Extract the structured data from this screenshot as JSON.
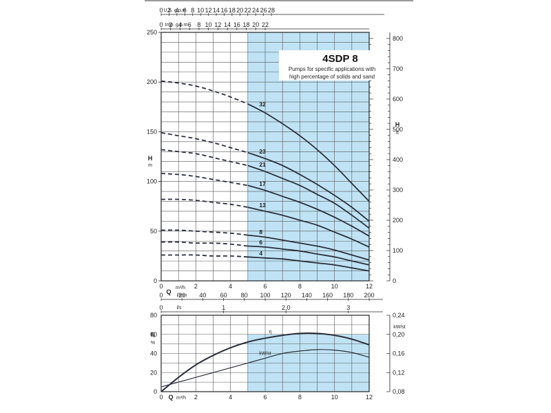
{
  "chart_data": [
    {
      "type": "line",
      "title": "4SDP 8",
      "subtitle_lines": [
        "Pumps for specific applications with",
        "high percentage of solids and sand"
      ],
      "ylabel_left": "H",
      "ylabel_left_unit": "m",
      "ylabel_right": "H",
      "ylabel_right_unit": "ft",
      "xlabel": "Q",
      "ylim": [
        0,
        250
      ],
      "xlim": [
        0,
        12
      ],
      "left_ticks": [
        "0",
        "50",
        "100",
        "150",
        "200",
        "250"
      ],
      "right_ticks": [
        "0",
        "100",
        "200",
        "300",
        "400",
        "500",
        "600",
        "700",
        "800"
      ],
      "x_axes": [
        {
          "unit": "U.S. g.p.m",
          "ticks": [
            "0",
            "2",
            "4",
            "6",
            "8",
            "10",
            "12",
            "14",
            "16",
            "18",
            "20",
            "22",
            "24",
            "26",
            "28"
          ]
        },
        {
          "unit": "Imp. g.p.m",
          "ticks": [
            "0",
            "2",
            "4",
            "6",
            "8",
            "10",
            "12",
            "14",
            "16",
            "18",
            "20",
            "22"
          ]
        },
        {
          "unit": "m³/h",
          "ticks": [
            "0",
            "2",
            "4",
            "6",
            "8",
            "10",
            "12"
          ]
        },
        {
          "unit": "l/min",
          "ticks": [
            "0",
            "20",
            "40",
            "60",
            "80",
            "100",
            "120",
            "140",
            "160",
            "180",
            "200"
          ]
        },
        {
          "unit": "l/s",
          "ticks": [
            "0",
            "1",
            "2,0",
            "3"
          ]
        }
      ],
      "working_range": [
        5,
        12
      ],
      "series": [
        {
          "name": "32",
          "x": [
            0,
            1,
            2,
            3,
            4,
            5,
            6,
            7,
            8,
            9,
            10,
            11,
            12
          ],
          "values": [
            201,
            199,
            196,
            191,
            185,
            178,
            169,
            158,
            146,
            132,
            116,
            98,
            80
          ]
        },
        {
          "name": "23",
          "x": [
            0,
            1,
            2,
            3,
            4,
            5,
            6,
            7,
            8,
            9,
            10,
            11,
            12
          ],
          "values": [
            149,
            146,
            143,
            139,
            134,
            129,
            123,
            116,
            107,
            97,
            86,
            74,
            60
          ]
        },
        {
          "name": "21",
          "x": [
            0,
            1,
            2,
            3,
            4,
            5,
            6,
            7,
            8,
            9,
            10,
            11,
            12
          ],
          "values": [
            132,
            130,
            128,
            124,
            120,
            116,
            110,
            103,
            96,
            87,
            78,
            66,
            53
          ]
        },
        {
          "name": "17",
          "x": [
            0,
            1,
            2,
            3,
            4,
            5,
            6,
            7,
            8,
            9,
            10,
            11,
            12
          ],
          "values": [
            108,
            107,
            105,
            102,
            99,
            96,
            91,
            85,
            79,
            72,
            64,
            55,
            45
          ]
        },
        {
          "name": "13",
          "x": [
            0,
            1,
            2,
            3,
            4,
            5,
            6,
            7,
            8,
            9,
            10,
            11,
            12
          ],
          "values": [
            82,
            82,
            81,
            79,
            77,
            74,
            70,
            66,
            61,
            56,
            49,
            42,
            34
          ]
        },
        {
          "name": "8",
          "x": [
            0,
            1,
            2,
            3,
            4,
            5,
            6,
            7,
            8,
            9,
            10,
            11,
            12
          ],
          "values": [
            51,
            51,
            50,
            49,
            48,
            46,
            44,
            41,
            38,
            35,
            31,
            26,
            21
          ]
        },
        {
          "name": "6",
          "x": [
            0,
            1,
            2,
            3,
            4,
            5,
            6,
            7,
            8,
            9,
            10,
            11,
            12
          ],
          "values": [
            39,
            39,
            38,
            38,
            37,
            35,
            34,
            32,
            30,
            27,
            24,
            20,
            16
          ]
        },
        {
          "name": "4",
          "x": [
            0,
            1,
            2,
            3,
            4,
            5,
            6,
            7,
            8,
            9,
            10,
            11,
            12
          ],
          "values": [
            26,
            26,
            26,
            25,
            25,
            24,
            23,
            22,
            20,
            18,
            16,
            13,
            10
          ]
        }
      ]
    },
    {
      "type": "line",
      "ylabel_left": "η",
      "ylabel_left_unit": "%",
      "ylabel_right_unit": "kW/st",
      "xlabel": "Q",
      "x_unit": "m³/h",
      "ylim": [
        0,
        80
      ],
      "xlim": [
        0,
        12
      ],
      "y2lim": [
        0.08,
        0.24
      ],
      "left_ticks": [
        "0",
        "20",
        "40",
        "60",
        "80"
      ],
      "right_ticks": [
        "0,08",
        "0,12",
        "0,16",
        "0,20",
        "0,24"
      ],
      "x_ticks": [
        "0",
        "2",
        "4",
        "6",
        "8",
        "10",
        "12"
      ],
      "working_range": [
        5,
        12
      ],
      "series": [
        {
          "name": "η",
          "x": [
            0,
            1,
            2,
            3,
            4,
            5,
            6,
            7,
            8,
            9,
            10,
            11,
            12
          ],
          "values": [
            0,
            15,
            28,
            38,
            46,
            52,
            56,
            59,
            61,
            61,
            59,
            55,
            49
          ]
        },
        {
          "name": "kW/st",
          "axis": "right",
          "x": [
            0,
            1,
            2,
            3,
            4,
            5,
            6,
            7,
            8,
            9,
            10,
            11,
            12
          ],
          "values": [
            0.09,
            0.1,
            0.11,
            0.12,
            0.13,
            0.14,
            0.15,
            0.16,
            0.165,
            0.168,
            0.167,
            0.162,
            0.152
          ]
        }
      ]
    }
  ]
}
